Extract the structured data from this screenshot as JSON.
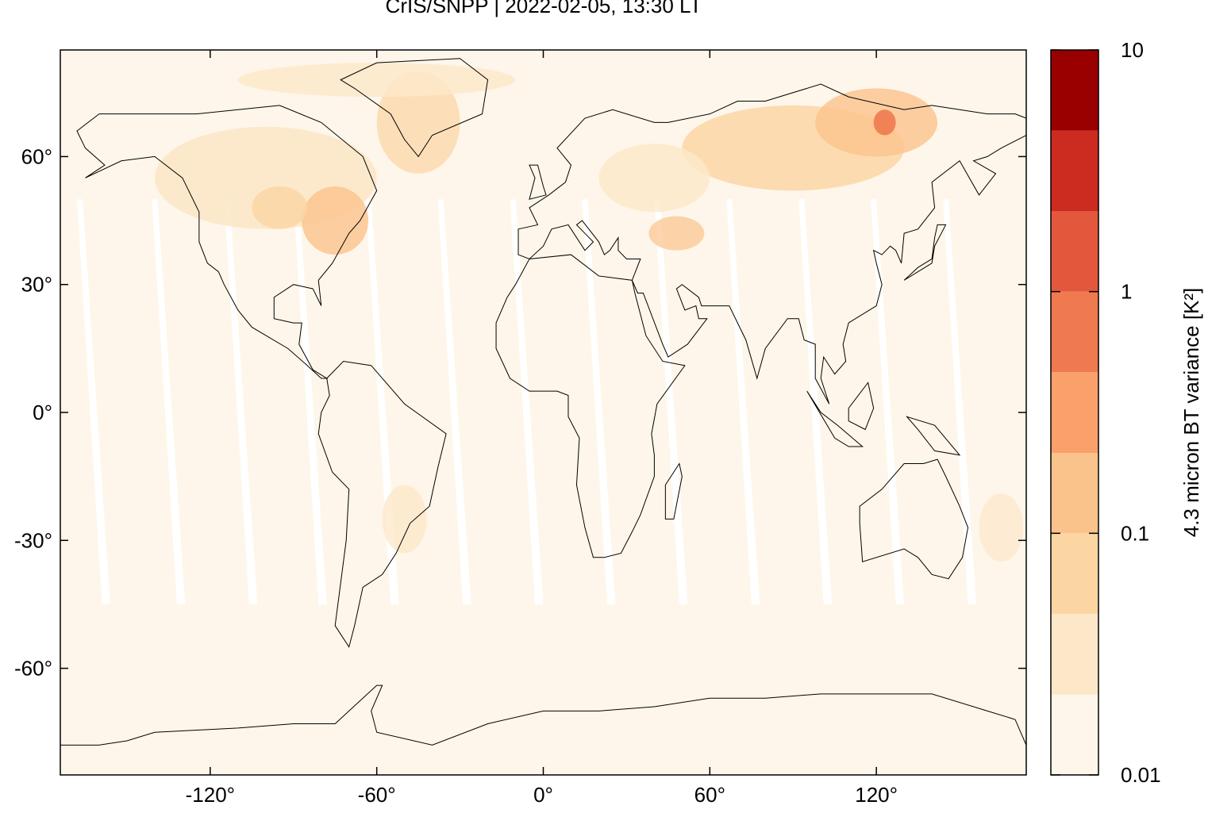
{
  "chart_data": {
    "type": "map",
    "title": "CrIS/SNPP | 2022-02-05, 13:30 LT",
    "xlim": [
      -174,
      174
    ],
    "ylim": [
      -85,
      85
    ],
    "xticks": [
      {
        "value": -120,
        "label": "-120°"
      },
      {
        "value": -60,
        "label": "-60°"
      },
      {
        "value": 0,
        "label": "0°"
      },
      {
        "value": 60,
        "label": "60°"
      },
      {
        "value": 120,
        "label": "120°"
      }
    ],
    "yticks": [
      {
        "value": -60,
        "label": "-60°"
      },
      {
        "value": -30,
        "label": "-30°"
      },
      {
        "value": 0,
        "label": "0°"
      },
      {
        "value": 30,
        "label": "30°"
      },
      {
        "value": 60,
        "label": "60°"
      }
    ],
    "colorbar": {
      "label": "4.3 micron BT variance [K²]",
      "log_scale": true,
      "lim": [
        0.01,
        10
      ],
      "ticks": [
        0.01,
        0.1,
        1,
        10
      ],
      "levels": [
        0.01,
        0.0215,
        0.0464,
        0.1,
        0.215,
        0.464,
        1,
        2.15,
        4.64,
        10
      ],
      "colors": [
        "#fef6ea",
        "#fce8c9",
        "#fbd5a2",
        "#fbc38c",
        "#f9a06b",
        "#ef7a4f",
        "#e3583c",
        "#cc2b1f",
        "#990000"
      ]
    }
  }
}
